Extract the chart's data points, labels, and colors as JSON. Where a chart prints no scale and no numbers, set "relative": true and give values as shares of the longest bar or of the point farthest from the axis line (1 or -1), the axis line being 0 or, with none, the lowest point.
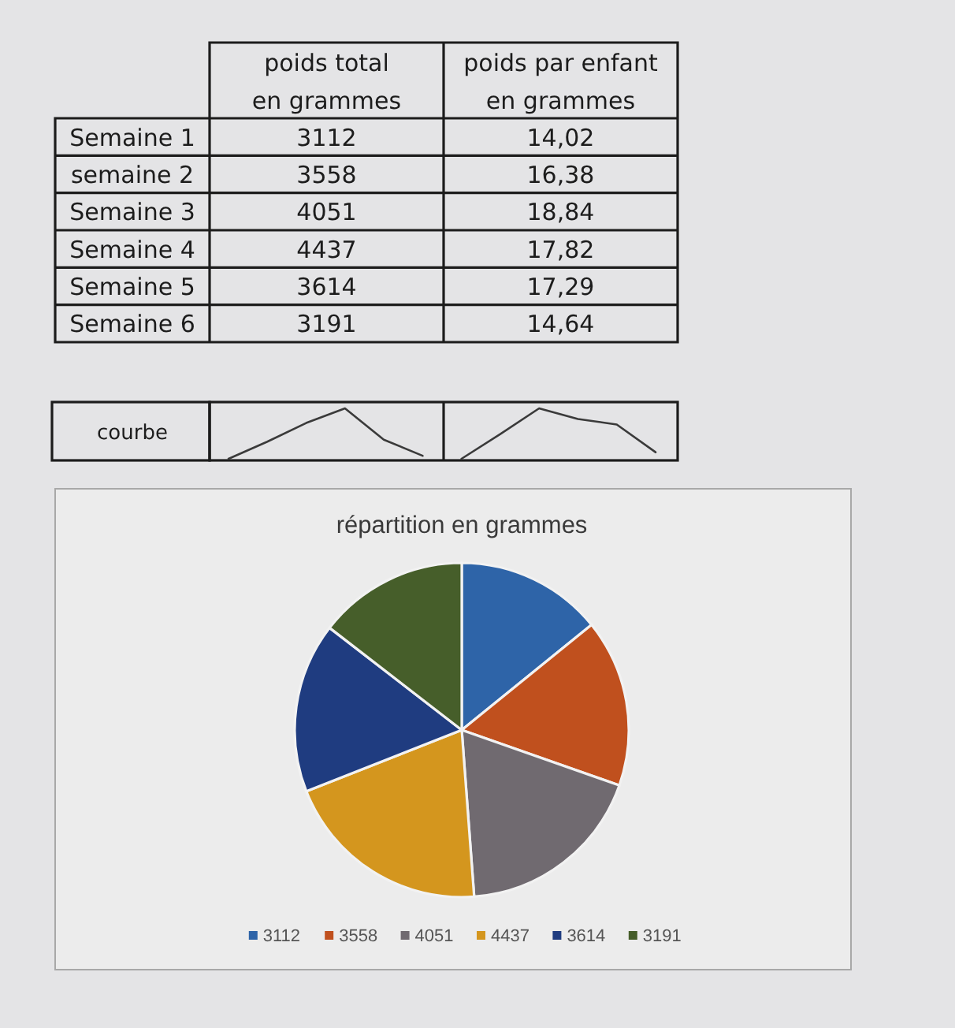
{
  "chart_data": [
    {
      "type": "other",
      "categories": [
        "Semaine 1",
        "semaine 2",
        "Semaine 3",
        "Semaine 4",
        "Semaine 5",
        "Semaine 6"
      ],
      "data_labels": true,
      "series": [
        {
          "name": "poids total en grammes",
          "values": [
            3112,
            3558,
            4051,
            4437,
            3614,
            3191
          ]
        },
        {
          "name": "poids par enfant en grammes",
          "values": [
            14.02,
            16.38,
            18.84,
            17.82,
            17.29,
            14.64
          ],
          "value_labels": [
            "14,02",
            "16,38",
            "18,84",
            "17,82",
            "17,29",
            "14,64"
          ]
        }
      ]
    },
    {
      "type": "line",
      "relative": true,
      "annotations": [
        "courbe"
      ],
      "categories": [
        null,
        null,
        null,
        null,
        null,
        null,
        null,
        null,
        null,
        null,
        null,
        null
      ],
      "series": [
        {
          "color": "#3a3a3a",
          "values": [
            0,
            0.34,
            0.71,
            1,
            0.38,
            0.06,
            null,
            null,
            null,
            null,
            null,
            null
          ]
        },
        {
          "color": "#3a3a3a",
          "values": [
            null,
            null,
            null,
            null,
            null,
            null,
            0,
            0.49,
            1,
            0.79,
            0.68,
            0.13
          ]
        }
      ]
    },
    {
      "type": "pie",
      "title": "répartition en grammes",
      "categories": [
        "3112",
        "3558",
        "4051",
        "4437",
        "3614",
        "3191"
      ],
      "values": [
        3112,
        3558,
        4051,
        4437,
        3614,
        3191
      ],
      "colors": [
        "#2e64a8",
        "#c0501e",
        "#706a70",
        "#d4961e",
        "#1f3c80",
        "#465e2a"
      ],
      "legend": "bottom"
    }
  ]
}
